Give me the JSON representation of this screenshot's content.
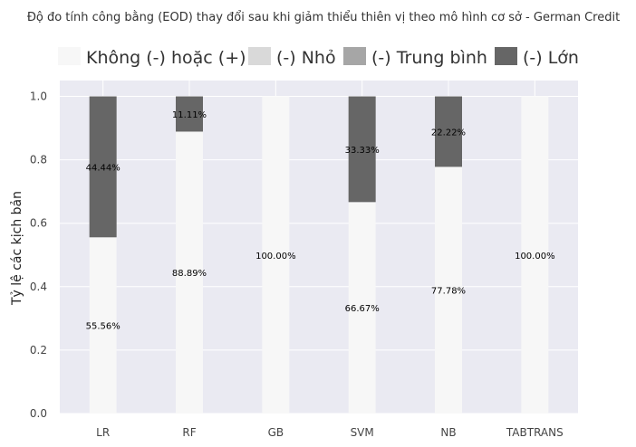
{
  "chart_data": {
    "type": "bar",
    "stacked": true,
    "title": "Độ đo tính công bằng (EOD) thay đổi sau khi giảm thiểu thiên vị theo mô hình cơ sở - German Credit",
    "xlabel": "",
    "ylabel": "Tỷ lệ các kịch bản",
    "ylim": [
      0,
      1.05
    ],
    "yticks": [
      "0.0",
      "0.2",
      "0.4",
      "0.6",
      "0.8",
      "1.0"
    ],
    "grid": true,
    "legend_position": "top",
    "categories": [
      "LR",
      "RF",
      "GB",
      "SVM",
      "NB",
      "TABTRANS"
    ],
    "series": [
      {
        "name": "Không (-) hoặc (+)",
        "color": "#f7f7f7",
        "values": [
          0.5556,
          0.8889,
          1.0,
          0.6667,
          0.7778,
          1.0
        ],
        "labels": [
          "55.56%",
          "88.89%",
          "100.00%",
          "66.67%",
          "77.78%",
          "100.00%"
        ]
      },
      {
        "name": "(-) Nhỏ",
        "color": "#d9d9d9",
        "values": [
          0,
          0,
          0,
          0,
          0,
          0
        ],
        "labels": [
          "",
          "",
          "",
          "",
          "",
          ""
        ]
      },
      {
        "name": "(-) Trung bình",
        "color": "#a6a6a6",
        "values": [
          0,
          0,
          0,
          0,
          0,
          0
        ],
        "labels": [
          "",
          "",
          "",
          "",
          "",
          ""
        ]
      },
      {
        "name": "(-) Lớn",
        "color": "#666666",
        "values": [
          0.4444,
          0.1111,
          0,
          0.3333,
          0.2222,
          0
        ],
        "labels": [
          "44.44%",
          "11.11%",
          "",
          "33.33%",
          "22.22%",
          ""
        ]
      }
    ]
  },
  "colors": {
    "plot_background": "#eaeaf2",
    "grid": "#ffffff"
  }
}
